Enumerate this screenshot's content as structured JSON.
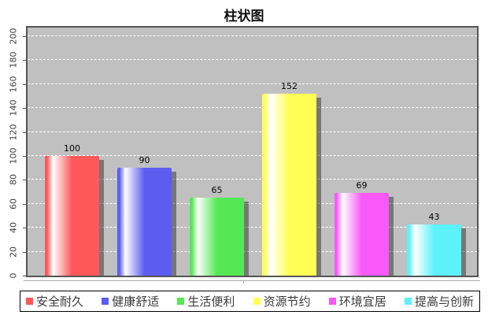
{
  "title": "柱状图",
  "chart_data": {
    "type": "bar",
    "title": "柱状图",
    "categories": [
      "安全耐久",
      "健康舒适",
      "生活便利",
      "资源节约",
      "环境宜居",
      "提高与创新"
    ],
    "values": [
      100,
      90,
      65,
      152,
      69,
      43
    ],
    "colors": [
      "#ff5858",
      "#5c5cf0",
      "#55e855",
      "#ffff55",
      "#f859f8",
      "#5cf2fa"
    ],
    "xlabel": "",
    "ylabel": "",
    "ylim": [
      0,
      200
    ],
    "ytick_step": 20,
    "grid": true,
    "gridline_style": "white-dashed",
    "plot_background": "#c0c0c0",
    "legend_position": "bottom",
    "bar_style": "cylinder-gradient-with-shadow"
  }
}
